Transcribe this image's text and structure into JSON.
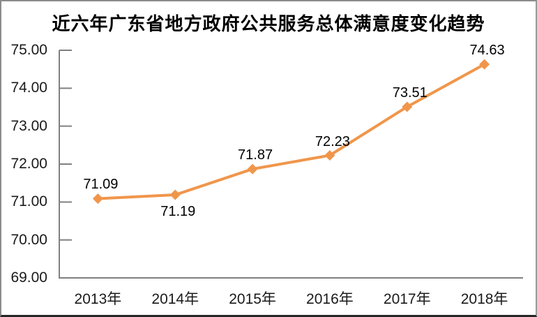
{
  "title": "近六年广东省地方政府公共服务总体满意度变化趋势",
  "chart_data": {
    "type": "line",
    "title": "近六年广东省地方政府公共服务总体满意度变化趋势",
    "categories": [
      "2013年",
      "2014年",
      "2015年",
      "2016年",
      "2017年",
      "2018年"
    ],
    "values": [
      71.09,
      71.19,
      71.87,
      72.23,
      73.51,
      74.63
    ],
    "data_labels": [
      "71.09",
      "71.19",
      "71.87",
      "72.23",
      "73.51",
      "74.63"
    ],
    "data_label_positions": [
      "above",
      "below",
      "above",
      "above",
      "above",
      "above"
    ],
    "y_tick_labels": [
      "75.00",
      "74.00",
      "73.00",
      "72.00",
      "71.00",
      "70.00",
      "69.00"
    ],
    "y_tick_values": [
      75,
      74,
      73,
      72,
      71,
      70,
      69
    ],
    "ylim": [
      69,
      75
    ],
    "xlabel": "",
    "ylabel": "",
    "grid": false,
    "legend_position": "none",
    "marker": "diamond",
    "line_color": "#F0964B",
    "axis_color": "#808080",
    "text_color": "#1a1a1a"
  }
}
